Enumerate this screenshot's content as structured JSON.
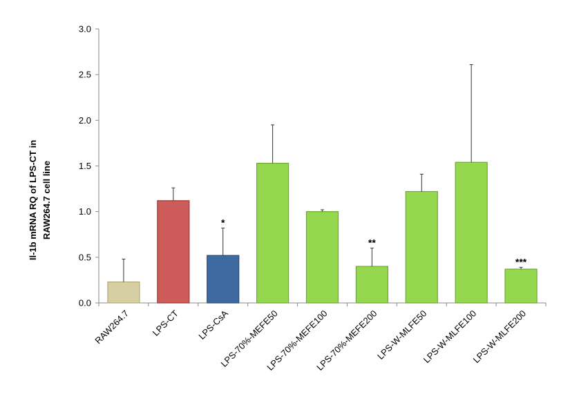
{
  "chart_data": {
    "type": "bar",
    "title": "",
    "xlabel": "",
    "ylabel_lines": [
      "Il-1b  mRNA  RQ of  LPS-CT in",
      "RAW264.7 cell line"
    ],
    "ylim": [
      0,
      3.0
    ],
    "yticks": [
      "0.0",
      "0.5",
      "1.0",
      "1.5",
      "2.0",
      "2.5",
      "3.0"
    ],
    "grid": false,
    "legend": "none",
    "categories": [
      "RAW264.7",
      "LPS-CT",
      "LPS-CsA",
      "LPS-70%-MEFE50",
      "LPS-70%-MEFE100",
      "LPS-70%-MEFE200",
      "LPS-W-MLFE50",
      "LPS-W-MLFE100",
      "LPS-W-MLFE200"
    ],
    "values": [
      0.23,
      1.12,
      0.52,
      1.53,
      1.0,
      0.4,
      1.22,
      1.54,
      0.37
    ],
    "error_upper": [
      0.25,
      0.14,
      0.3,
      0.42,
      0.02,
      0.2,
      0.19,
      1.07,
      0.02
    ],
    "significance": [
      "",
      "",
      "*",
      "",
      "",
      "**",
      "",
      "",
      "***"
    ],
    "colors": [
      "#d6cfa4",
      "#cd5b5a",
      "#3f6aa1",
      "#95d74f",
      "#95d74f",
      "#95d74f",
      "#95d74f",
      "#95d74f",
      "#95d74f"
    ],
    "edge_colors": [
      "#b3a978",
      "#a13a39",
      "#2a4c7a",
      "#6faa2f",
      "#6faa2f",
      "#6faa2f",
      "#6faa2f",
      "#6faa2f",
      "#6faa2f"
    ]
  }
}
